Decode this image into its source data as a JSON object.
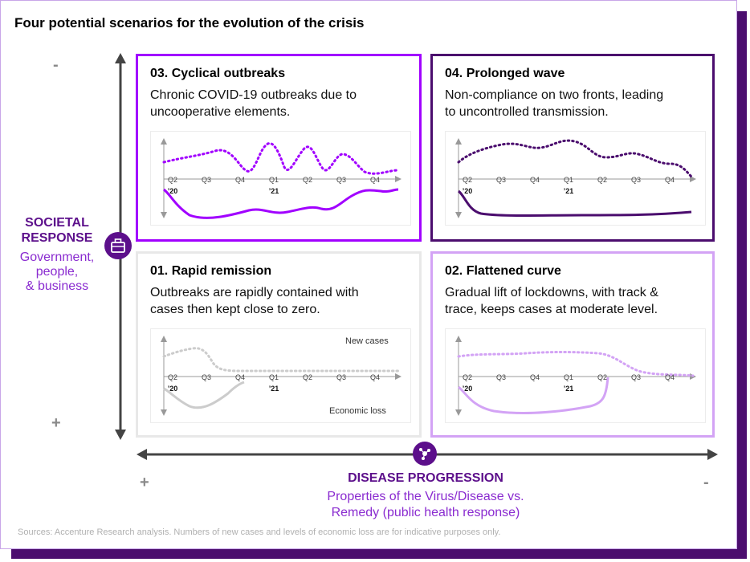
{
  "title": "Four potential scenarios for the evolution of the crisis",
  "y_axis": {
    "top_sign": "-",
    "bottom_sign": "+",
    "label_line1": "SOCIETAL",
    "label_line2": "RESPONSE",
    "sub_line1": "Government,",
    "sub_line2": "people,",
    "sub_line3": "& business",
    "icon": "briefcase-icon"
  },
  "x_axis": {
    "left_sign": "+",
    "right_sign": "-",
    "label": "DISEASE PROGRESSION",
    "sub_line1": "Properties of the Virus/Disease vs.",
    "sub_line2": "Remedy (public health response)",
    "icon": "virus-icon"
  },
  "colors": {
    "accent_dark": "#4b0d6e",
    "accent_purple": "#a100ff",
    "accent_mid": "#b455ff",
    "light_purple": "#d3a3f5",
    "gray": "#cccccc"
  },
  "quadrants": {
    "q3": {
      "title": "03. Cyclical outbreaks",
      "desc_line1": "Chronic COVID-19 outbreaks due to",
      "desc_line2": "uncooperative elements."
    },
    "q4": {
      "title": "04. Prolonged wave",
      "desc_line1": "Non-compliance on two fronts, leading",
      "desc_line2": "to uncontrolled transmission."
    },
    "q1": {
      "title": "01. Rapid remission",
      "desc_line1": "Outbreaks are rapidly contained with",
      "desc_line2": "cases then kept close to zero."
    },
    "q2": {
      "title": "02. Flattened curve",
      "desc_line1": "Gradual lift of lockdowns, with track &",
      "desc_line2": "trace, keeps cases at moderate level."
    }
  },
  "mini_chart": {
    "ticks": [
      "Q2",
      "Q3",
      "Q4",
      "Q1",
      "Q2",
      "Q3",
      "Q4"
    ],
    "year_2020": "’20",
    "year_2021": "’21",
    "new_cases_label": "New cases",
    "economic_loss_label": "Economic loss"
  },
  "source": "Sources: Accenture Research analysis. Numbers of new cases and levels of economic loss are for indicative purposes only."
}
